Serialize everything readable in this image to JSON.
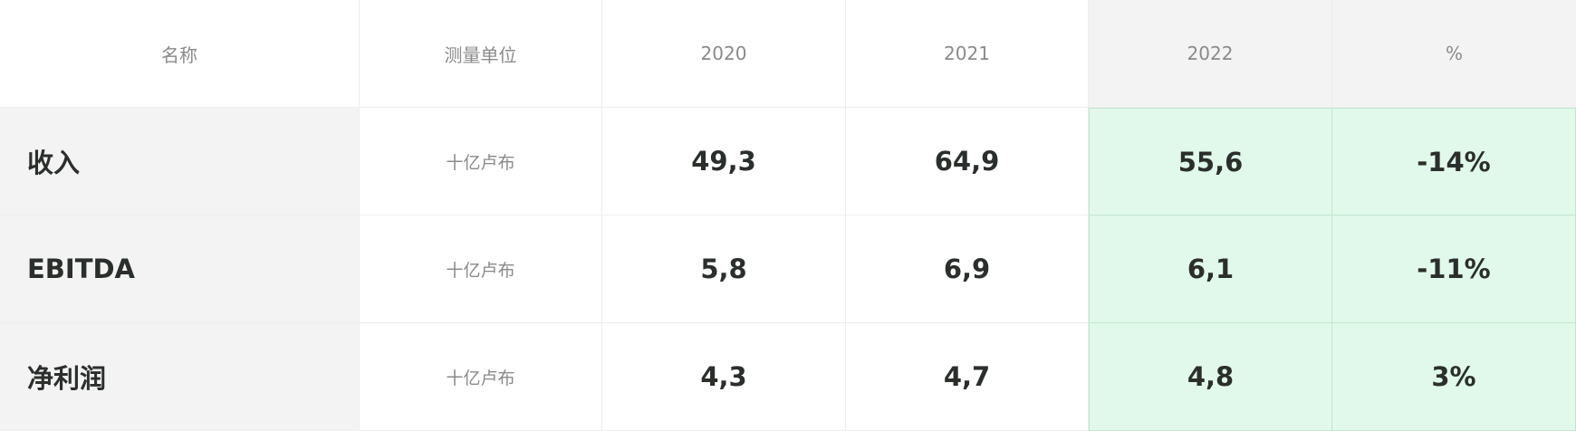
{
  "header": {
    "name": "名称",
    "unit": "测量单位",
    "y2020": "2020",
    "y2021": "2021",
    "y2022": "2022",
    "pct": "%"
  },
  "rows": [
    {
      "name": "收入",
      "unit": "十亿卢布",
      "v2020": "49,3",
      "v2021": "64,9",
      "v2022": "55,6",
      "pct": "-14%"
    },
    {
      "name": "EBITDA",
      "unit": "十亿卢布",
      "v2020": "5,8",
      "v2021": "6,9",
      "v2022": "6,1",
      "pct": "-11%"
    },
    {
      "name": "净利润",
      "unit": "十亿卢布",
      "v2020": "4,3",
      "v2021": "4,7",
      "v2022": "4,8",
      "pct": "3%"
    }
  ],
  "colors": {
    "highlight_bg": "#e1f9ea",
    "highlight_border": "#bfe6cc",
    "name_column_bg": "#f3f3f3",
    "text_dark": "#2b2f2c",
    "text_muted": "#8a8a8a"
  }
}
